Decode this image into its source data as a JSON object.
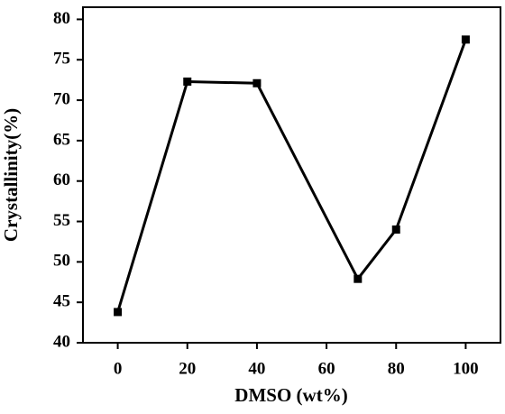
{
  "chart_data": {
    "type": "line",
    "xlabel": "DMSO (wt%)",
    "ylabel": "Crystallinity(%)",
    "x": [
      0,
      20,
      40,
      69,
      80,
      100
    ],
    "series": [
      {
        "name": "Crystallinity",
        "color": "#000000",
        "values": [
          43.8,
          72.3,
          72.1,
          47.9,
          54.0,
          77.5
        ]
      }
    ],
    "xlim": [
      -10,
      110
    ],
    "xticks": [
      0,
      20,
      40,
      60,
      80,
      100
    ],
    "ylim": [
      40,
      81.5
    ],
    "yticks": [
      40,
      45,
      50,
      55,
      60,
      65,
      70,
      75,
      80
    ],
    "grid": false
  }
}
